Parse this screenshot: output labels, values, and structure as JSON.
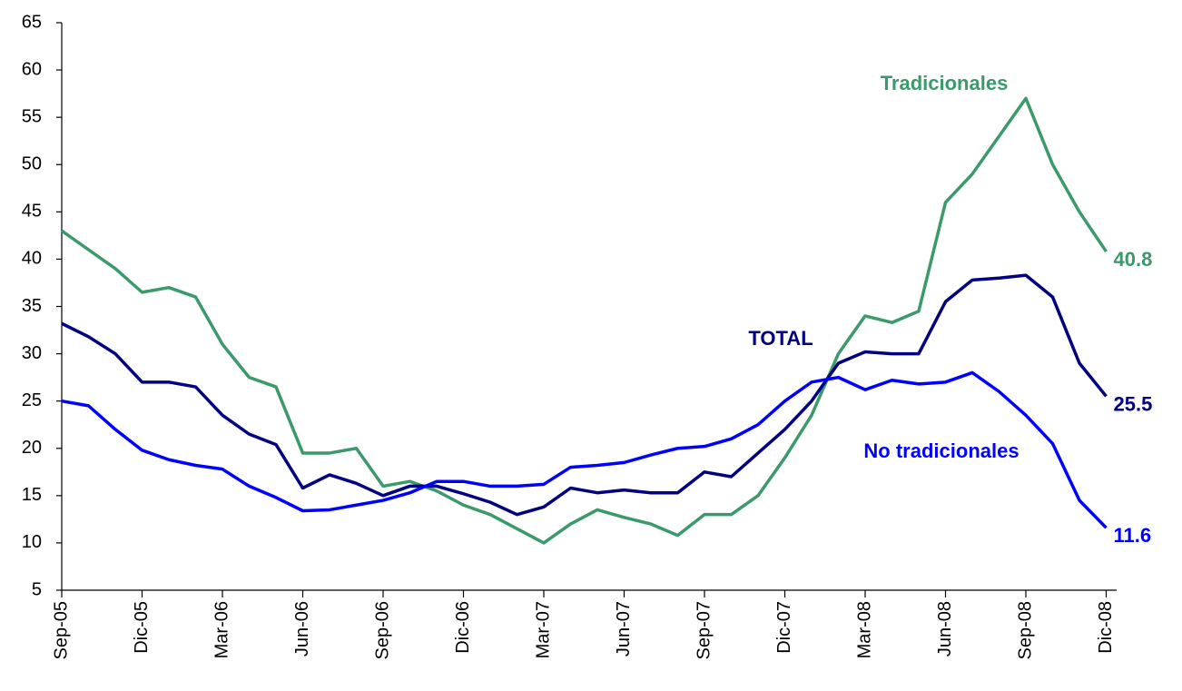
{
  "chart_data": {
    "type": "line",
    "categories": [
      "Sep-05",
      null,
      null,
      "Dic-05",
      null,
      null,
      "Mar-06",
      null,
      null,
      "Jun-06",
      null,
      null,
      "Sep-06",
      null,
      null,
      "Dic-06",
      null,
      null,
      "Mar-07",
      null,
      null,
      "Jun-07",
      null,
      null,
      "Sep-07",
      null,
      null,
      "Dic-07",
      null,
      null,
      "Mar-08",
      null,
      null,
      "Jun-08",
      null,
      null,
      "Sep-08",
      null,
      null,
      "Dic-08"
    ],
    "series": [
      {
        "name": "Tradicionales",
        "color": "#3a9a6a",
        "values": [
          43,
          41,
          39,
          36.5,
          37,
          36,
          31,
          27.5,
          26.5,
          19.5,
          19.5,
          20,
          16,
          16.5,
          15.5,
          14,
          13,
          11.5,
          10,
          12,
          13.5,
          12.7,
          12,
          10.8,
          13,
          13,
          15,
          19,
          23.5,
          30,
          34,
          33.3,
          34.5,
          46,
          49,
          53,
          57,
          50,
          45,
          40.8
        ]
      },
      {
        "name": "TOTAL",
        "color": "#000080",
        "values": [
          33.2,
          31.8,
          30,
          27,
          27,
          26.5,
          23.5,
          21.5,
          20.4,
          15.8,
          17.2,
          16.3,
          15,
          16,
          16,
          15.2,
          14.3,
          13,
          13.8,
          15.8,
          15.3,
          15.6,
          15.3,
          15.3,
          17.5,
          17,
          19.5,
          22,
          25,
          29,
          30.2,
          30,
          30,
          35.5,
          37.8,
          38,
          38.3,
          36,
          29,
          25.5
        ]
      },
      {
        "name": "No tradicionales",
        "color": "#0000ff",
        "values": [
          25,
          24.5,
          22,
          19.8,
          18.8,
          18.2,
          17.8,
          16,
          14.8,
          13.4,
          13.5,
          14,
          14.5,
          15.3,
          16.5,
          16.5,
          16,
          16,
          16.2,
          18,
          18.2,
          18.5,
          19.3,
          20,
          20.2,
          21,
          22.5,
          25,
          27,
          27.5,
          26.2,
          27.2,
          26.8,
          27,
          28,
          26,
          23.5,
          20.5,
          14.5,
          11.6
        ]
      }
    ],
    "ylim": [
      5,
      65
    ],
    "yticks": [
      5,
      10,
      15,
      20,
      25,
      30,
      35,
      40,
      45,
      50,
      55,
      60,
      65
    ],
    "grid": false
  }
}
